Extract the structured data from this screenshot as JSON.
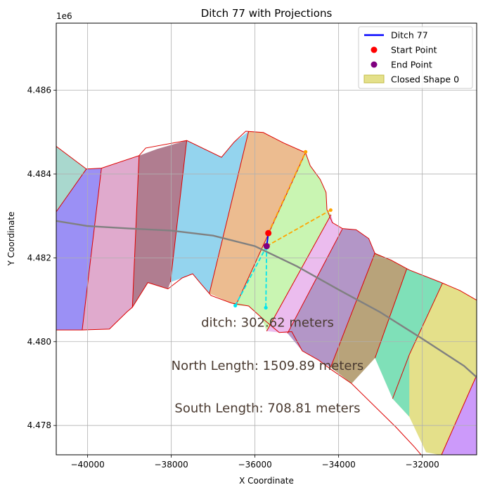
{
  "chart_data": {
    "type": "map-plot",
    "title": "Ditch 77 with Projections",
    "xlabel": "X Coordinate",
    "ylabel": "Y Coordinate",
    "y_offset_label": "1e6",
    "xlim": [
      -40750,
      -30700
    ],
    "ylim": [
      4477300,
      4487600
    ],
    "grid": true,
    "legend_position": "top-right",
    "x_ticks": [
      {
        "value": -40000,
        "label": "−40000"
      },
      {
        "value": -38000,
        "label": "−38000"
      },
      {
        "value": -36000,
        "label": "−36000"
      },
      {
        "value": -34000,
        "label": "−34000"
      },
      {
        "value": -32000,
        "label": "−32000"
      }
    ],
    "y_ticks": [
      {
        "value": 4478000,
        "label": "4.478"
      },
      {
        "value": 4480000,
        "label": "4.480"
      },
      {
        "value": 4482000,
        "label": "4.482"
      },
      {
        "value": 4484000,
        "label": "4.484"
      },
      {
        "value": 4486000,
        "label": "4.486"
      }
    ],
    "legend": [
      {
        "label": "Ditch 77",
        "kind": "line",
        "color": "#0000ff"
      },
      {
        "label": "Start Point",
        "kind": "dot",
        "color": "#ff0000"
      },
      {
        "label": "End Point",
        "kind": "dot",
        "color": "#800080"
      },
      {
        "label": "Closed Shape 0",
        "kind": "patch",
        "color": "#e4e08a"
      }
    ],
    "annotations": [
      {
        "text": "ditch: 302.62 meters",
        "x": -35700,
        "y": 4480360
      },
      {
        "text": "North Length: 1509.89 meters",
        "x": -35700,
        "y": 4479330
      },
      {
        "text": "South Length: 708.81 meters",
        "x": -35700,
        "y": 4478310
      }
    ],
    "start_point": {
      "x": -35680,
      "y": 4482590,
      "color": "#ff0000"
    },
    "end_point": {
      "x": -35720,
      "y": 4482280,
      "color": "#800080"
    },
    "ditch_77": {
      "color": "#0000ff",
      "x": [
        -35680,
        -35720
      ],
      "y": [
        4482590,
        4482280
      ]
    },
    "centerline": {
      "color": "#808080",
      "x": [
        -40750,
        -40000,
        -39000,
        -38000,
        -37000,
        -36000,
        -35000,
        -34000,
        -33000,
        -32000,
        -31000,
        -30700
      ],
      "y": [
        4482880,
        4482760,
        4482700,
        4482650,
        4482530,
        4482280,
        4481800,
        4481240,
        4480700,
        4480070,
        4479420,
        4479150
      ]
    },
    "projections": [
      {
        "color": "#ffa500",
        "x": [
          -35680,
          -34790
        ],
        "y": [
          4482590,
          4484530
        ]
      },
      {
        "color": "#ffa500",
        "x": [
          -35720,
          -34190
        ],
        "y": [
          4482280,
          4483140
        ]
      },
      {
        "color": "#00e5ee",
        "x": [
          -35720,
          -36470
        ],
        "y": [
          4482280,
          4480860
        ]
      },
      {
        "color": "#00e5ee",
        "x": [
          -35720,
          -35740
        ],
        "y": [
          4482280,
          4480810
        ]
      }
    ],
    "outline": {
      "x": [
        -40750,
        -40030,
        -39670,
        -38770,
        -38610,
        -37630,
        -36800,
        -36500,
        -36220,
        -35800,
        -35310,
        -34790,
        -34680,
        -34440,
        -34300,
        -34280,
        -34150,
        -33910,
        -33580,
        -33280,
        -33130,
        -32750,
        -32310,
        -31570,
        -31100,
        -30700,
        -30700,
        -31380,
        -31910,
        -32180,
        -32630,
        -33690,
        -34170,
        -34480,
        -34870,
        -35120,
        -35420,
        -35840,
        -36150,
        -36560,
        -37050,
        -37290,
        -37490,
        -37740,
        -38080,
        -38560,
        -38930,
        -39060,
        -39480,
        -40130,
        -40750
      ],
      "y": [
        4484660,
        4484120,
        4484140,
        4484440,
        4484620,
        4484800,
        4484400,
        4484760,
        4485020,
        4484990,
        4484740,
        4484510,
        4484200,
        4483870,
        4483560,
        4483150,
        4482840,
        4482700,
        4482670,
        4482460,
        4482100,
        4481950,
        4481710,
        4481420,
        4481220,
        4480990,
        4477300,
        4477300,
        4477160,
        4477480,
        4477960,
        4479000,
        4479330,
        4479560,
        4479780,
        4480240,
        4480220,
        4480570,
        4480850,
        4480920,
        4481100,
        4481380,
        4481620,
        4481520,
        4481260,
        4481410,
        4480820,
        4480710,
        4480300,
        4480280,
        4480280
      ]
    },
    "shapes": [
      {
        "label": "Closed Shape 0",
        "fill": "#e4e08a",
        "points": [
          [
            -30700,
            4481000
          ],
          [
            -31100,
            4481220
          ],
          [
            -31520,
            4481390
          ],
          [
            -32310,
            4479690
          ],
          [
            -32710,
            4478640
          ],
          [
            -32310,
            4478210
          ],
          [
            -31910,
            4477360
          ],
          [
            -31540,
            4477290
          ],
          [
            -30700,
            4479200
          ]
        ]
      },
      {
        "fill": "#7fe0b8",
        "points": [
          [
            -31520,
            4481390
          ],
          [
            -32370,
            4481740
          ],
          [
            -33130,
            4479610
          ],
          [
            -32710,
            4478640
          ],
          [
            -32310,
            4478210
          ],
          [
            -32310,
            4479690
          ]
        ]
      },
      {
        "fill": "#b8a37a",
        "points": [
          [
            -32370,
            4481740
          ],
          [
            -32760,
            4481950
          ],
          [
            -33130,
            4482120
          ],
          [
            -34190,
            4479390
          ],
          [
            -33690,
            4479000
          ],
          [
            -33130,
            4479610
          ]
        ]
      },
      {
        "fill": "#b396c7",
        "points": [
          [
            -33130,
            4482120
          ],
          [
            -33280,
            4482460
          ],
          [
            -33580,
            4482670
          ],
          [
            -33910,
            4482690
          ],
          [
            -35220,
            4480200
          ],
          [
            -34870,
            4479780
          ],
          [
            -34480,
            4479560
          ],
          [
            -34190,
            4479390
          ]
        ]
      },
      {
        "fill": "#ebbcee",
        "points": [
          [
            -33910,
            4482690
          ],
          [
            -34120,
            4482810
          ],
          [
            -34180,
            4483030
          ],
          [
            -35720,
            4480250
          ],
          [
            -35400,
            4480220
          ],
          [
            -35220,
            4480200
          ]
        ]
      },
      {
        "fill": "#c9f5b2",
        "points": [
          [
            -34180,
            4483030
          ],
          [
            -34280,
            4483150
          ],
          [
            -34300,
            4483560
          ],
          [
            -34440,
            4483870
          ],
          [
            -34680,
            4484200
          ],
          [
            -34790,
            4484510
          ],
          [
            -36460,
            4480860
          ],
          [
            -36150,
            4480850
          ],
          [
            -35840,
            4480570
          ],
          [
            -35720,
            4480250
          ]
        ]
      },
      {
        "fill": "#ecbc90",
        "points": [
          [
            -34790,
            4484510
          ],
          [
            -35310,
            4484740
          ],
          [
            -35800,
            4484990
          ],
          [
            -36150,
            4485020
          ],
          [
            -37090,
            4481150
          ],
          [
            -36560,
            4480920
          ],
          [
            -36460,
            4480860
          ]
        ]
      },
      {
        "fill": "#94d4ee",
        "points": [
          [
            -36150,
            4485020
          ],
          [
            -36500,
            4484760
          ],
          [
            -36800,
            4484400
          ],
          [
            -37630,
            4484800
          ],
          [
            -38020,
            4481420
          ],
          [
            -37740,
            4481520
          ],
          [
            -37490,
            4481620
          ],
          [
            -37290,
            4481380
          ],
          [
            -37090,
            4481150
          ]
        ]
      },
      {
        "fill": "#b07d90",
        "points": [
          [
            -37630,
            4484800
          ],
          [
            -38330,
            4484600
          ],
          [
            -38770,
            4484440
          ],
          [
            -38930,
            4480820
          ],
          [
            -38560,
            4481410
          ],
          [
            -38080,
            4481260
          ],
          [
            -38020,
            4481420
          ]
        ]
      },
      {
        "fill": "#e0aacd",
        "points": [
          [
            -38770,
            4484440
          ],
          [
            -39670,
            4484140
          ],
          [
            -40130,
            4480280
          ],
          [
            -39480,
            4480300
          ],
          [
            -39060,
            4480710
          ],
          [
            -38930,
            4480820
          ]
        ]
      },
      {
        "fill": "#9b90f5",
        "points": [
          [
            -39670,
            4484140
          ],
          [
            -40030,
            4484120
          ],
          [
            -40750,
            4483100
          ],
          [
            -40750,
            4480280
          ],
          [
            -40130,
            4480280
          ]
        ]
      },
      {
        "fill": "#a9d8ce",
        "points": [
          [
            -40750,
            4484660
          ],
          [
            -40030,
            4484120
          ],
          [
            -40750,
            4483100
          ]
        ]
      },
      {
        "fill": "#cc9afa",
        "points": [
          [
            -30700,
            4479200
          ],
          [
            -31540,
            4477300
          ],
          [
            -30700,
            4477300
          ]
        ]
      }
    ],
    "dividers": [
      [
        [
          -31520,
          4481390
        ],
        [
          -32310,
          4479690
        ],
        [
          -32710,
          4478640
        ]
      ],
      [
        [
          -32370,
          4481740
        ],
        [
          -33130,
          4479610
        ]
      ],
      [
        [
          -33130,
          4482120
        ],
        [
          -34190,
          4479390
        ]
      ],
      [
        [
          -33910,
          4482690
        ],
        [
          -35220,
          4480200
        ]
      ],
      [
        [
          -34180,
          4483030
        ],
        [
          -35720,
          4480250
        ]
      ],
      [
        [
          -34790,
          4484510
        ],
        [
          -36460,
          4480860
        ]
      ],
      [
        [
          -36150,
          4485020
        ],
        [
          -37090,
          4481150
        ]
      ],
      [
        [
          -37630,
          4484800
        ],
        [
          -38020,
          4481420
        ]
      ],
      [
        [
          -38770,
          4484440
        ],
        [
          -38930,
          4480820
        ]
      ],
      [
        [
          -39670,
          4484140
        ],
        [
          -40130,
          4480280
        ]
      ],
      [
        [
          -40030,
          4484120
        ],
        [
          -40750,
          4483100
        ]
      ],
      [
        [
          -30700,
          4479200
        ],
        [
          -31540,
          4477300
        ]
      ]
    ]
  }
}
